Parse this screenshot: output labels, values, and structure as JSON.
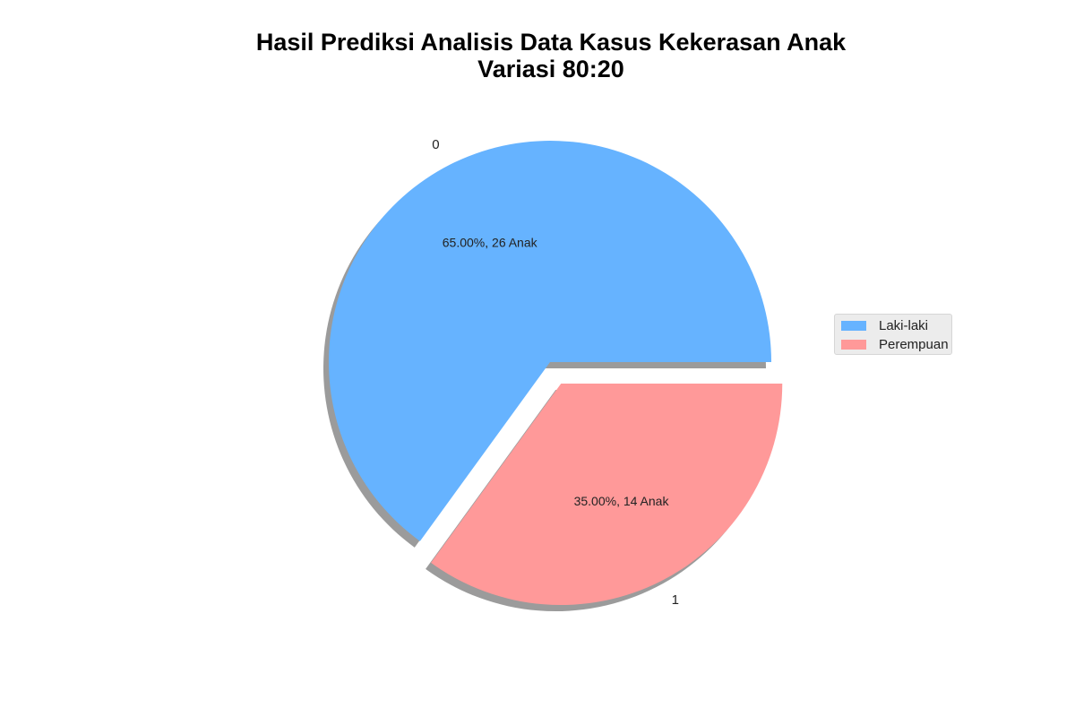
{
  "chart_data": {
    "type": "pie",
    "title": [
      "Hasil Prediksi Analisis Data Kasus Kekerasan Anak",
      "Variasi 80:20"
    ],
    "slices": [
      {
        "label": "0",
        "legend": "Laki-laki",
        "value": 26,
        "percent": 65.0,
        "text": "65.00%, 26 Anak",
        "color": "#66b3ff",
        "exploded": false
      },
      {
        "label": "1",
        "legend": "Perempuan",
        "value": 14,
        "percent": 35.0,
        "text": "35.00%, 14 Anak",
        "color": "#ff9999",
        "exploded": true
      }
    ],
    "shadow": true,
    "legend_position": "center-right"
  }
}
